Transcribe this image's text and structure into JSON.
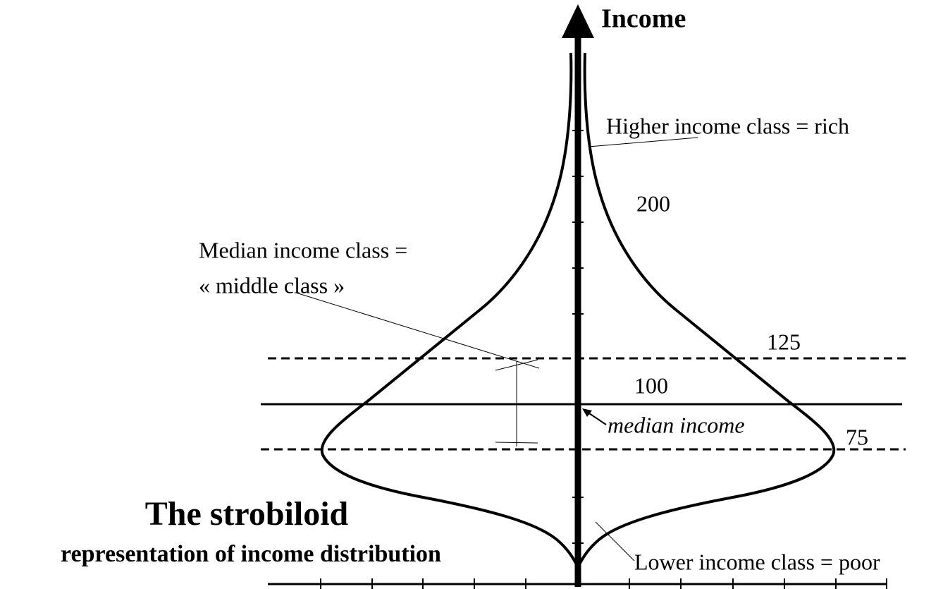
{
  "axis_label": "Income",
  "labels": {
    "rich": "Higher income class = rich",
    "median_line1": "Median income class =",
    "median_line2": "« middle class »",
    "median_income": "median income",
    "poor": "Lower income class = poor"
  },
  "levels": {
    "l200": 200,
    "l125": 125,
    "l100": 100,
    "l75": 75
  },
  "title": "The strobiloid",
  "subtitle": "representation of income distribution"
}
